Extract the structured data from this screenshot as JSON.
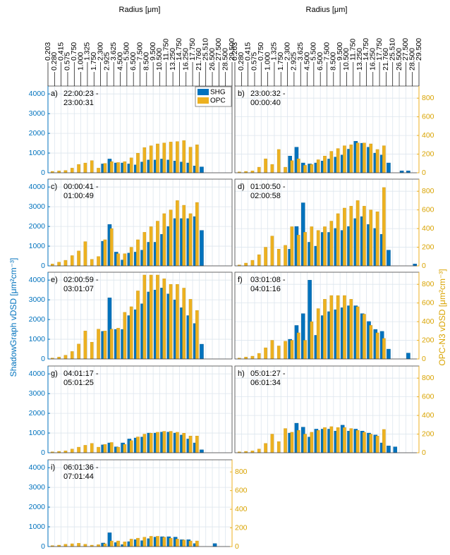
{
  "xlabel": "Radius [μm]",
  "ylabel": "ShadowGraph vDSD  [μm²cm⁻³]",
  "y2label": "OPC-N3 vDSD [μm²cm⁻³]",
  "x_edges": [
    "0.203",
    "0.280",
    "0.415",
    "0.575",
    "0.750",
    "1.000",
    "1.325",
    "1.750",
    "2.300",
    "2.925",
    "3.625",
    "4.500",
    "5.500",
    "6.500",
    "7.500",
    "8.500",
    "9.500",
    "10.500",
    "11.750",
    "13.250",
    "14.750",
    "16.250",
    "17.750",
    "21.760",
    "25.510",
    "26.500",
    "27.500",
    "28.500",
    "29.500"
  ],
  "legend_entries": [
    {
      "name": "SHG",
      "color": "#0072bd"
    },
    {
      "name": "OPC",
      "color": "#edb120"
    }
  ],
  "chart_data": [
    {
      "type": "bar",
      "label": "a)",
      "title": [
        "22:00:23 -",
        "23:00:31"
      ],
      "legend": "upper right",
      "grid": true,
      "ylim": [
        0,
        4400
      ],
      "y2lim": [
        0,
        930
      ],
      "yticks": [
        0,
        1000,
        2000,
        3000,
        4000
      ],
      "series": [
        {
          "values": [
            null,
            null,
            null,
            null,
            null,
            null,
            null,
            null,
            450,
            700,
            500,
            500,
            450,
            400,
            550,
            650,
            650,
            700,
            650,
            600,
            550,
            500,
            350,
            300,
            0,
            0,
            0,
            0
          ]
        },
        {
          "axis": "y2",
          "values": [
            15,
            20,
            25,
            50,
            90,
            105,
            130,
            50,
            100,
            120,
            110,
            120,
            160,
            210,
            270,
            290,
            310,
            320,
            330,
            335,
            345,
            275,
            300,
            null,
            null,
            null,
            null,
            null
          ]
        }
      ]
    },
    {
      "type": "bar",
      "label": "b)",
      "title": [
        "23:00:32 -",
        "00:00:40"
      ],
      "grid": true,
      "ylim": [
        0,
        4400
      ],
      "y2lim": [
        0,
        930
      ],
      "y2ticks": [
        0,
        200,
        400,
        600,
        800
      ],
      "series": [
        {
          "values": [
            null,
            null,
            null,
            null,
            null,
            null,
            null,
            null,
            850,
            1300,
            500,
            450,
            500,
            600,
            700,
            800,
            900,
            1200,
            1600,
            1500,
            1300,
            1000,
            900,
            500,
            0,
            100,
            100,
            0
          ]
        },
        {
          "axis": "y2",
          "values": [
            10,
            15,
            20,
            60,
            150,
            90,
            250,
            60,
            130,
            150,
            80,
            90,
            140,
            180,
            230,
            260,
            290,
            300,
            320,
            320,
            310,
            250,
            290,
            null,
            null,
            null,
            null,
            null
          ]
        }
      ]
    },
    {
      "type": "bar",
      "label": "c)",
      "title": [
        "00:00:41 -",
        "01:00:49"
      ],
      "grid": true,
      "ylim": [
        0,
        4400
      ],
      "y2lim": [
        0,
        930
      ],
      "yticks": [
        0,
        1000,
        2000,
        3000,
        4000
      ],
      "series": [
        {
          "values": [
            null,
            null,
            null,
            null,
            null,
            null,
            null,
            null,
            1250,
            2100,
            700,
            300,
            650,
            700,
            800,
            1200,
            1200,
            1600,
            2000,
            2400,
            2400,
            2400,
            2500,
            1800,
            0,
            0,
            0,
            0
          ]
        },
        {
          "axis": "y2",
          "values": [
            20,
            40,
            60,
            110,
            160,
            260,
            70,
            100,
            280,
            400,
            130,
            130,
            200,
            280,
            360,
            420,
            480,
            560,
            600,
            700,
            650,
            560,
            680,
            null,
            null,
            null,
            null,
            null
          ]
        }
      ]
    },
    {
      "type": "bar",
      "label": "d)",
      "title": [
        "01:00:50 -",
        "02:00:58"
      ],
      "grid": true,
      "ylim": [
        0,
        4400
      ],
      "y2lim": [
        0,
        930
      ],
      "y2ticks": [
        0,
        200,
        400,
        600,
        800
      ],
      "series": [
        {
          "values": [
            null,
            null,
            null,
            null,
            null,
            null,
            null,
            null,
            850,
            2000,
            3200,
            1200,
            1000,
            1700,
            1700,
            1900,
            1800,
            2000,
            2400,
            2500,
            2100,
            1900,
            1600,
            800,
            0,
            0,
            0,
            100
          ]
        },
        {
          "axis": "y2",
          "values": [
            10,
            30,
            60,
            120,
            200,
            320,
            180,
            220,
            420,
            330,
            360,
            420,
            380,
            420,
            480,
            560,
            620,
            640,
            700,
            640,
            600,
            580,
            840,
            null,
            null,
            null,
            null,
            null
          ]
        }
      ]
    },
    {
      "type": "bar",
      "label": "e)",
      "title": [
        "02:00:59 -",
        "03:01:07"
      ],
      "grid": true,
      "ylim": [
        0,
        4400
      ],
      "y2lim": [
        0,
        930
      ],
      "yticks": [
        0,
        1000,
        2000,
        3000,
        4000
      ],
      "series": [
        {
          "values": [
            null,
            null,
            null,
            null,
            null,
            null,
            null,
            null,
            1400,
            3100,
            1500,
            1500,
            2200,
            2500,
            2800,
            3400,
            3500,
            3600,
            3300,
            3000,
            2600,
            2200,
            1800,
            750,
            0,
            0,
            0,
            0
          ]
        },
        {
          "axis": "y2",
          "values": [
            10,
            20,
            40,
            80,
            160,
            300,
            180,
            320,
            300,
            320,
            330,
            500,
            560,
            730,
            900,
            900,
            900,
            860,
            800,
            800,
            760,
            640,
            520,
            null,
            null,
            null,
            null,
            null
          ]
        }
      ]
    },
    {
      "type": "bar",
      "label": "f)",
      "title": [
        "03:01:08 -",
        "04:01:16"
      ],
      "grid": true,
      "ylim": [
        0,
        4400
      ],
      "y2lim": [
        0,
        930
      ],
      "y2ticks": [
        0,
        200,
        400,
        600,
        800
      ],
      "series": [
        {
          "values": [
            null,
            null,
            null,
            null,
            null,
            null,
            null,
            null,
            1000,
            1700,
            2300,
            4000,
            1200,
            2200,
            2400,
            2500,
            2600,
            2700,
            2700,
            2300,
            1900,
            1500,
            1400,
            500,
            0,
            0,
            300,
            0
          ]
        },
        {
          "axis": "y2",
          "values": [
            10,
            20,
            30,
            60,
            120,
            200,
            140,
            190,
            200,
            280,
            200,
            400,
            540,
            640,
            680,
            680,
            680,
            640,
            560,
            480,
            360,
            280,
            220,
            null,
            null,
            null,
            null,
            null
          ]
        }
      ]
    },
    {
      "type": "bar",
      "label": "g)",
      "title": [
        "04:01:17 -",
        "05:01:25"
      ],
      "grid": true,
      "ylim": [
        0,
        4400
      ],
      "y2lim": [
        0,
        930
      ],
      "yticks": [
        0,
        1000,
        2000,
        3000,
        4000
      ],
      "series": [
        {
          "values": [
            null,
            null,
            null,
            null,
            null,
            null,
            null,
            null,
            400,
            500,
            300,
            500,
            700,
            750,
            800,
            1000,
            1000,
            1050,
            1050,
            1000,
            900,
            700,
            500,
            150,
            0,
            0,
            0,
            0
          ]
        },
        {
          "axis": "y2",
          "values": [
            10,
            15,
            20,
            40,
            60,
            80,
            100,
            60,
            90,
            110,
            60,
            90,
            130,
            170,
            200,
            210,
            220,
            230,
            230,
            220,
            210,
            180,
            180,
            null,
            null,
            null,
            null,
            null
          ]
        }
      ]
    },
    {
      "type": "bar",
      "label": "h)",
      "title": [
        "05:01:27 -",
        "06:01:34"
      ],
      "grid": true,
      "ylim": [
        0,
        4400
      ],
      "y2lim": [
        0,
        930
      ],
      "y2ticks": [
        0,
        200,
        400,
        600,
        800
      ],
      "series": [
        {
          "values": [
            null,
            null,
            null,
            null,
            null,
            null,
            null,
            null,
            1000,
            1500,
            1300,
            800,
            1200,
            1200,
            1200,
            1100,
            1400,
            1100,
            1200,
            1100,
            1000,
            900,
            500,
            350,
            300,
            0,
            0,
            0
          ]
        },
        {
          "axis": "y2",
          "values": [
            10,
            15,
            20,
            40,
            100,
            200,
            120,
            260,
            220,
            240,
            200,
            220,
            240,
            270,
            280,
            270,
            270,
            260,
            240,
            220,
            200,
            180,
            250,
            null,
            null,
            null,
            null,
            null
          ]
        }
      ]
    },
    {
      "type": "bar",
      "label": "i)",
      "title": [
        "06:01:36 -",
        "07:01:44"
      ],
      "grid": true,
      "ylim": [
        0,
        4400
      ],
      "y2lim": [
        0,
        930
      ],
      "yticks": [
        0,
        1000,
        2000,
        3000,
        4000
      ],
      "y2ticks": [
        0,
        200,
        400,
        600,
        800
      ],
      "series": [
        {
          "values": [
            null,
            null,
            null,
            null,
            null,
            null,
            null,
            null,
            180,
            700,
            200,
            100,
            250,
            350,
            300,
            400,
            480,
            500,
            500,
            480,
            350,
            350,
            150,
            0,
            0,
            150,
            0,
            0
          ]
        },
        {
          "axis": "y2",
          "values": [
            10,
            15,
            25,
            30,
            35,
            25,
            15,
            20,
            30,
            60,
            60,
            50,
            80,
            90,
            100,
            110,
            110,
            100,
            90,
            80,
            70,
            60,
            60,
            null,
            null,
            null,
            null,
            null
          ]
        }
      ]
    }
  ]
}
